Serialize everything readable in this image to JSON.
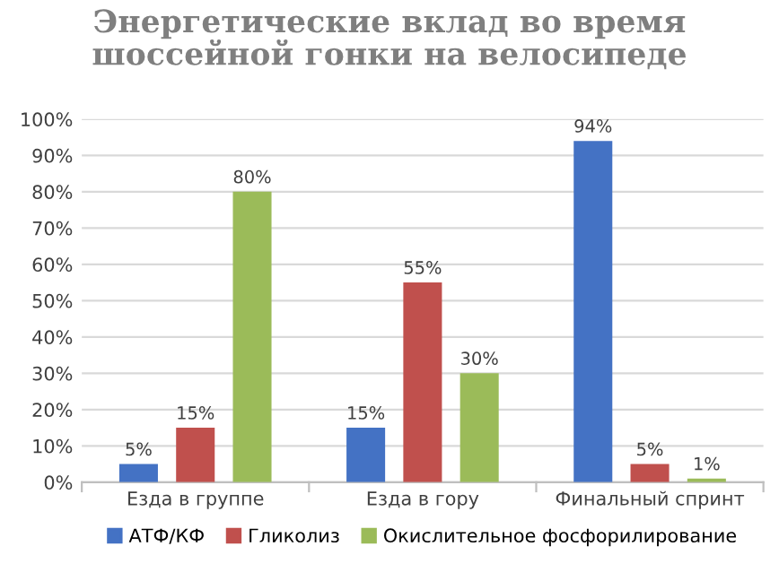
{
  "chart_data": {
    "type": "bar",
    "title": "Энергетические вклад во время\nшоссейной гонки на велосипеде",
    "categories": [
      "Езда в группе",
      "Езда в гору",
      "Финальный спринт"
    ],
    "series": [
      {
        "name": "АТФ/КФ",
        "color": "#4472c4",
        "values": [
          5,
          15,
          94
        ],
        "value_labels": [
          "5%",
          "15%",
          "94%"
        ]
      },
      {
        "name": "Гликолиз",
        "color": "#c0504d",
        "values": [
          15,
          55,
          5
        ],
        "value_labels": [
          "15%",
          "55%",
          "5%"
        ]
      },
      {
        "name": "Окислительное фосфорилирование",
        "color": "#9bbb59",
        "values": [
          80,
          30,
          1
        ],
        "value_labels": [
          "80%",
          "30%",
          "1%"
        ]
      }
    ],
    "ylim": [
      0,
      100
    ],
    "yticks": [
      {
        "value": 0,
        "label": "0%"
      },
      {
        "value": 10,
        "label": "10%"
      },
      {
        "value": 20,
        "label": "20%"
      },
      {
        "value": 30,
        "label": "30%"
      },
      {
        "value": 40,
        "label": "40%"
      },
      {
        "value": 50,
        "label": "50%"
      },
      {
        "value": 60,
        "label": "60%"
      },
      {
        "value": 70,
        "label": "70%"
      },
      {
        "value": 80,
        "label": "80%"
      },
      {
        "value": 90,
        "label": "90%"
      },
      {
        "value": 100,
        "label": "100%"
      }
    ],
    "grid": "y",
    "legend": "bottom"
  }
}
